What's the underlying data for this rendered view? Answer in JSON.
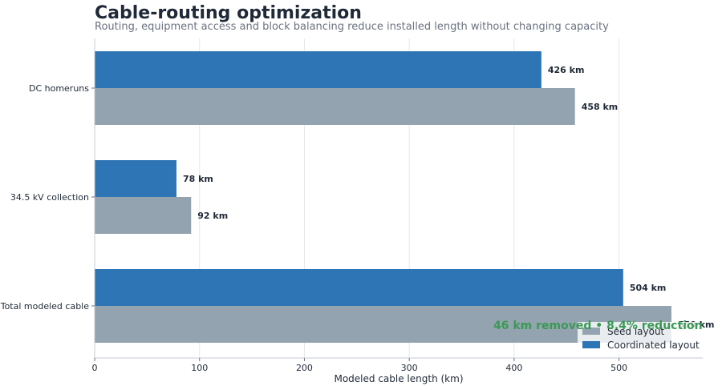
{
  "chart_data": {
    "type": "bar",
    "orientation": "horizontal",
    "title": "Cable-routing optimization",
    "subtitle": "Routing, equipment access and block balancing reduce installed length without changing capacity",
    "xlabel": "Modeled cable length (km)",
    "ylabel": "",
    "xlim": [
      0,
      580
    ],
    "xticks": [
      0,
      100,
      200,
      300,
      400,
      500
    ],
    "grid": "vertical",
    "categories": [
      "DC homeruns",
      "34.5 kV collection",
      "Total modeled cable"
    ],
    "series": [
      {
        "name": "Coordinated layout",
        "color": "#2e75b6",
        "values": [
          426,
          78,
          504
        ],
        "labels": [
          "426 km",
          "78 km",
          "504 km"
        ]
      },
      {
        "name": "Seed layout",
        "color": "#94a3b0",
        "values": [
          458,
          92,
          550
        ],
        "labels": [
          "458 km",
          "92 km",
          "550 km"
        ]
      }
    ],
    "annotation": {
      "text": "46 km removed • 8.4% reduction",
      "color": "#3a9a55"
    },
    "legend": {
      "placement": "bottom-right",
      "entries": [
        {
          "label": "Seed layout",
          "color": "#94a3b0"
        },
        {
          "label": "Coordinated layout",
          "color": "#2e75b6"
        }
      ]
    }
  }
}
